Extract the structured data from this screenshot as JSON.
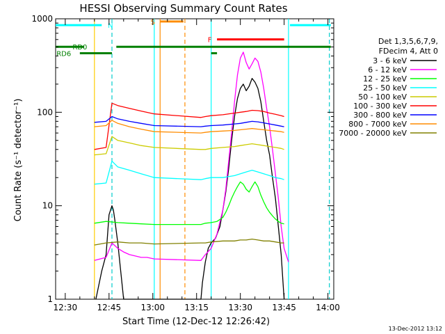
{
  "chart_data": {
    "type": "line",
    "title": "HESSI Observing Summary Count Rates",
    "xlabel": "Start Time (12-Dec-12 12:26:42)",
    "ylabel": "Count Rate (s⁻¹ detector⁻¹)",
    "x_unit": "minutes since 12:00 UT",
    "xlim": [
      26.7,
      122
    ],
    "ylim": [
      1,
      1000
    ],
    "y_scale": "log",
    "grid": false,
    "legend_position": "right",
    "x_ticks": [
      {
        "label": "12:30",
        "value": 30
      },
      {
        "label": "12:45",
        "value": 45
      },
      {
        "label": "13:00",
        "value": 60
      },
      {
        "label": "13:15",
        "value": 75
      },
      {
        "label": "13:30",
        "value": 90
      },
      {
        "label": "13:45",
        "value": 105
      },
      {
        "label": "14:00",
        "value": 120
      }
    ],
    "y_ticks": [
      {
        "label": "1",
        "value": 1
      },
      {
        "label": "10",
        "value": 10
      },
      {
        "label": "100",
        "value": 100
      },
      {
        "label": "1000",
        "value": 1000
      }
    ],
    "legend_header": [
      "Det 1,3,5,6,7,9,",
      "FDecim 4, Att 0"
    ],
    "series": [
      {
        "name": "3 - 6 keV",
        "color": "#000000",
        "x": [
          40.5,
          42.5,
          44.0,
          45.0,
          46.0,
          46.5,
          47.0,
          48.0,
          49.0,
          50.0,
          76.5,
          77.0,
          78.0,
          79.0,
          80.0,
          81.5,
          83.0,
          84.0,
          85.0,
          86.0,
          87.0,
          88.0,
          89.0,
          90.0,
          91.0,
          92.0,
          93.0,
          94.0,
          95.0,
          96.0,
          97.0,
          98.0,
          99.0,
          100.0,
          101.0,
          102.0,
          103.0,
          104.0,
          105.0
        ],
        "y": [
          1.0,
          2.0,
          3.0,
          8.0,
          10.0,
          9.0,
          7.0,
          4.0,
          2.0,
          1.0,
          1.0,
          1.5,
          2.5,
          3.5,
          4.0,
          4.5,
          6.0,
          9.0,
          14.0,
          25.0,
          50.0,
          90.0,
          140.0,
          180.0,
          200.0,
          170.0,
          190.0,
          230.0,
          210.0,
          180.0,
          130.0,
          80.0,
          50.0,
          35.0,
          20.0,
          12.0,
          6.0,
          3.0,
          1.0
        ]
      },
      {
        "name": "6 - 12 keV",
        "color": "#FF00FF",
        "x": [
          40.0,
          44.0,
          46.0,
          48.0,
          50.0,
          52.0,
          54.0,
          56.0,
          58.0,
          60.5,
          76.5,
          78.0,
          80.0,
          82.0,
          84.0,
          85.0,
          86.0,
          87.0,
          88.0,
          89.0,
          90.0,
          91.0,
          92.0,
          93.0,
          94.0,
          95.0,
          96.0,
          97.0,
          98.0,
          99.0,
          100.0,
          101.0,
          102.0,
          103.0,
          104.0,
          105.0,
          106.5
        ],
        "y": [
          2.6,
          2.8,
          4.0,
          3.5,
          3.2,
          3.0,
          2.9,
          2.8,
          2.8,
          2.7,
          2.6,
          3.0,
          3.5,
          5.0,
          9.0,
          15.0,
          30.0,
          60.0,
          130.0,
          250.0,
          380.0,
          440.0,
          340.0,
          290.0,
          330.0,
          380.0,
          350.0,
          270.0,
          180.0,
          110.0,
          70.0,
          40.0,
          22.0,
          12.0,
          6.0,
          3.5,
          2.5
        ]
      },
      {
        "name": "12 - 25 keV",
        "color": "#00FF00",
        "x": [
          40.0,
          44.0,
          48.0,
          52.0,
          56.0,
          60.5,
          76.5,
          78.0,
          80.0,
          82.0,
          84.0,
          85.0,
          86.0,
          87.0,
          88.0,
          89.0,
          90.0,
          91.0,
          92.0,
          93.0,
          94.0,
          95.0,
          96.0,
          97.0,
          98.0,
          99.0,
          100.0,
          101.0,
          102.0,
          103.0,
          104.0,
          105.0
        ],
        "y": [
          6.5,
          6.8,
          6.6,
          6.5,
          6.4,
          6.3,
          6.3,
          6.5,
          6.6,
          6.8,
          7.5,
          8.5,
          10.0,
          12.0,
          14.0,
          16.0,
          18.0,
          17.0,
          15.0,
          14.0,
          16.0,
          18.0,
          16.0,
          13.0,
          11.0,
          9.5,
          8.5,
          7.8,
          7.2,
          6.8,
          6.5,
          6.4
        ]
      },
      {
        "name": "25 - 50 keV",
        "color": "#00FFFF",
        "x": [
          40.0,
          44.0,
          46.0,
          48.0,
          52.0,
          56.0,
          60.5,
          76.5,
          78.0,
          80.0,
          84.0,
          88.0,
          90.0,
          92.0,
          94.0,
          96.0,
          98.0,
          100.0,
          102.0,
          104.0,
          105.0
        ],
        "y": [
          17.0,
          17.5,
          30.0,
          26.0,
          24.0,
          22.0,
          20.0,
          19.0,
          19.5,
          20.0,
          20.0,
          21.0,
          22.0,
          23.0,
          24.0,
          23.0,
          22.0,
          21.0,
          20.0,
          19.5,
          19.0
        ]
      },
      {
        "name": "50 - 100 keV",
        "color": "#CCCC00",
        "x": [
          40.0,
          44.0,
          46.0,
          48.0,
          52.0,
          56.0,
          60.5,
          76.5,
          78.0,
          80.0,
          84.0,
          88.0,
          90.0,
          92.0,
          94.0,
          96.0,
          98.0,
          100.0,
          102.0,
          104.0,
          105.0
        ],
        "y": [
          35.0,
          36.0,
          55.0,
          50.0,
          47.0,
          44.0,
          42.0,
          40.0,
          40.0,
          41.0,
          42.0,
          43.0,
          44.0,
          45.0,
          46.0,
          45.0,
          44.0,
          43.0,
          42.0,
          41.0,
          40.0
        ]
      },
      {
        "name": "100 - 300 keV",
        "color": "#FF0000",
        "x": [
          40.0,
          44.0,
          46.0,
          48.0,
          52.0,
          56.0,
          60.5,
          76.5,
          78.0,
          80.0,
          84.0,
          88.0,
          90.0,
          92.0,
          94.0,
          96.0,
          98.0,
          100.0,
          102.0,
          104.0,
          105.0
        ],
        "y": [
          40.0,
          42.0,
          125.0,
          118.0,
          110.0,
          103.0,
          96.0,
          88.0,
          90.0,
          92.0,
          94.0,
          98.0,
          100.0,
          102.0,
          105.0,
          104.0,
          102.0,
          98.0,
          95.0,
          92.0,
          90.0
        ]
      },
      {
        "name": "300 - 800 keV",
        "color": "#0000FF",
        "x": [
          40.0,
          44.0,
          46.0,
          48.0,
          52.0,
          56.0,
          60.5,
          76.5,
          78.0,
          80.0,
          84.0,
          88.0,
          90.0,
          92.0,
          94.0,
          96.0,
          98.0,
          100.0,
          102.0,
          104.0,
          105.0
        ],
        "y": [
          78.0,
          80.0,
          90.0,
          85.0,
          80.0,
          76.0,
          72.0,
          70.0,
          71.0,
          72.0,
          73.0,
          75.0,
          76.0,
          78.0,
          80.0,
          79.0,
          77.0,
          75.0,
          73.0,
          71.0,
          70.0
        ]
      },
      {
        "name": "800 - 7000 keV",
        "color": "#FF8C00",
        "x": [
          40.0,
          44.0,
          46.0,
          48.0,
          52.0,
          56.0,
          60.5,
          76.5,
          78.0,
          80.0,
          84.0,
          88.0,
          90.0,
          92.0,
          94.0,
          96.0,
          98.0,
          100.0,
          102.0,
          104.0,
          105.0
        ],
        "y": [
          70.0,
          72.0,
          82.0,
          76.0,
          70.0,
          66.0,
          62.0,
          60.0,
          61.0,
          62.0,
          63.0,
          64.0,
          65.0,
          66.0,
          67.0,
          66.0,
          65.0,
          64.0,
          63.0,
          62.0,
          61.0
        ]
      },
      {
        "name": "7000 - 20000 keV",
        "color": "#808000",
        "x": [
          40.0,
          44.0,
          48.0,
          52.0,
          56.0,
          60.5,
          76.5,
          78.0,
          80.0,
          84.0,
          88.0,
          90.0,
          92.0,
          94.0,
          96.0,
          98.0,
          100.0,
          102.0,
          104.0,
          105.0
        ],
        "y": [
          3.8,
          4.0,
          4.1,
          4.0,
          4.0,
          3.9,
          4.0,
          4.0,
          4.1,
          4.2,
          4.2,
          4.3,
          4.3,
          4.4,
          4.3,
          4.2,
          4.2,
          4.1,
          4.0,
          4.0
        ]
      }
    ],
    "observing_flags": [
      {
        "label": "N",
        "color": "#00FFFF",
        "x0": 26.7,
        "x1": 42.5,
        "level": 855.0,
        "label_at": 45.5
      },
      {
        "label": "N",
        "color": "#00FFFF",
        "x0": 107.0,
        "x1": 121.0,
        "level": 855.0,
        "label_at": null
      },
      {
        "label": "S",
        "color": "#FF8C00",
        "x0": 62.5,
        "x1": 70.5,
        "level": 935.0,
        "label_at": 60.0
      },
      {
        "label": "F",
        "color": "#FF0000",
        "x0": 82.0,
        "x1": 105.0,
        "level": 602.0,
        "label_at": 79.5
      },
      {
        "label": "RD0",
        "color": "#008000",
        "x0": 26.7,
        "x1": 36.5,
        "level": 502.0,
        "label_at": 35.0
      },
      {
        "label": "RD0",
        "color": "#008000",
        "x0": 47.5,
        "x1": 121.0,
        "level": 502.0,
        "label_at": null
      },
      {
        "label": "RD6",
        "color": "#008000",
        "x0": 35.0,
        "x1": 46.0,
        "level": 428.0,
        "label_at": 29.5
      },
      {
        "label": "",
        "color": "#008000",
        "x0": 80.0,
        "x1": 82.0,
        "level": 428.0,
        "label_at": null
      }
    ],
    "vertical_markers": [
      {
        "x": 40.0,
        "color": "#FFCC00",
        "style": "solid"
      },
      {
        "x": 46.0,
        "color": "#00CCCC",
        "style": "dashed"
      },
      {
        "x": 60.5,
        "color": "#00FFFF",
        "style": "solid"
      },
      {
        "x": 62.5,
        "color": "#FF8C00",
        "style": "solid"
      },
      {
        "x": 71.0,
        "color": "#FF8C00",
        "style": "dashed"
      },
      {
        "x": 80.0,
        "color": "#00FFFF",
        "style": "solid"
      },
      {
        "x": 106.5,
        "color": "#00FFFF",
        "style": "solid"
      },
      {
        "x": 120.5,
        "color": "#00CCCC",
        "style": "dashed"
      }
    ],
    "footer_timestamp": "13-Dec-2012 13:12"
  }
}
